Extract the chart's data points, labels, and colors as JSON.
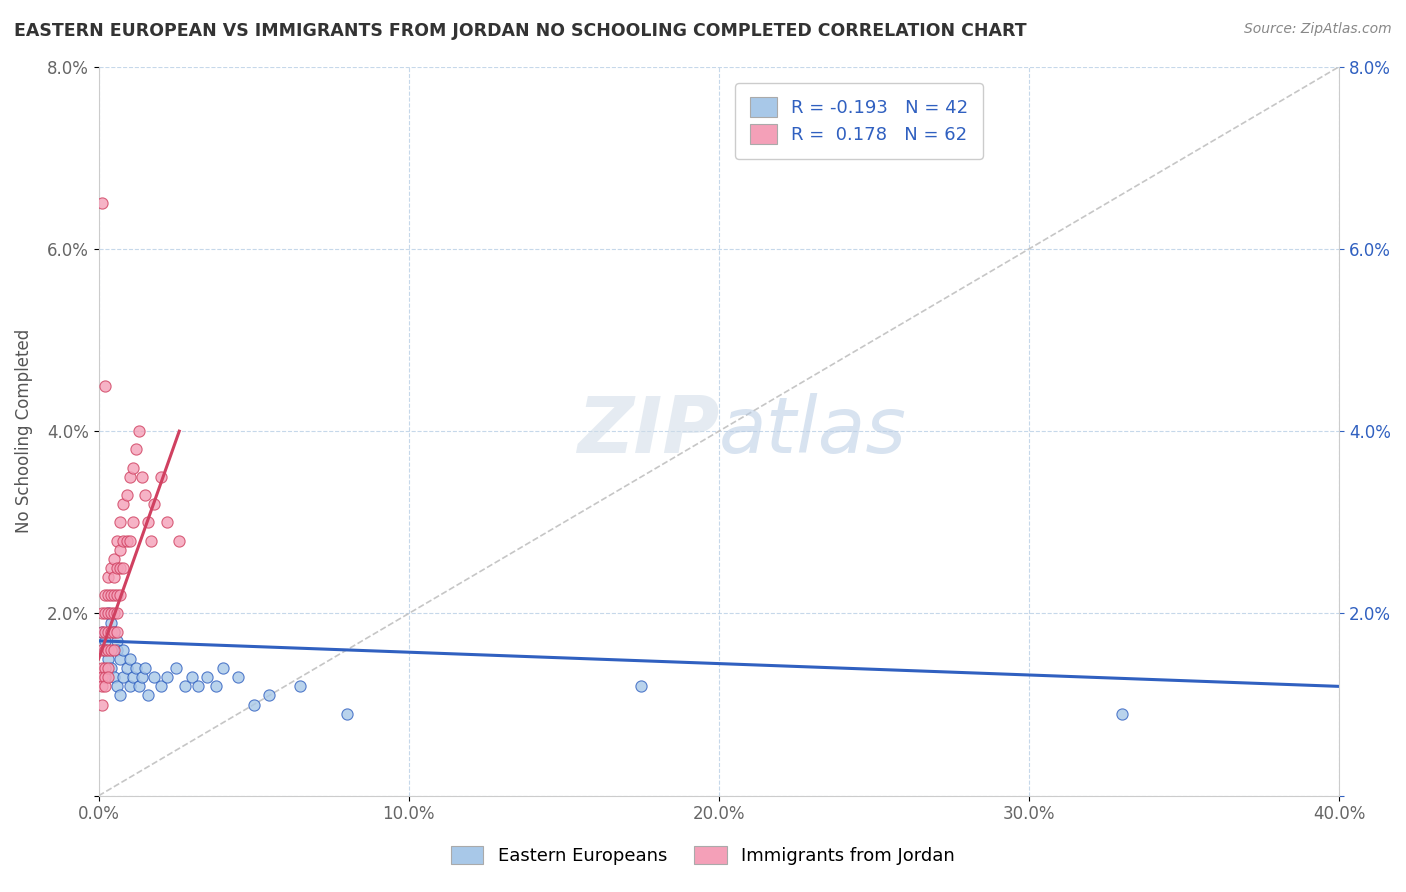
{
  "title": "EASTERN EUROPEAN VS IMMIGRANTS FROM JORDAN NO SCHOOLING COMPLETED CORRELATION CHART",
  "source": "Source: ZipAtlas.com",
  "ylabel": "No Schooling Completed",
  "xlim": [
    0,
    0.4
  ],
  "ylim": [
    0,
    0.08
  ],
  "xticks": [
    0.0,
    0.1,
    0.2,
    0.3,
    0.4
  ],
  "yticks": [
    0.0,
    0.02,
    0.04,
    0.06,
    0.08
  ],
  "xtick_labels": [
    "0.0%",
    "10.0%",
    "20.0%",
    "30.0%",
    "40.0%"
  ],
  "ytick_labels": [
    "",
    "2.0%",
    "4.0%",
    "6.0%",
    "8.0%"
  ],
  "legend_labels": [
    "Eastern Europeans",
    "Immigrants from Jordan"
  ],
  "R_blue": -0.193,
  "N_blue": 42,
  "R_pink": 0.178,
  "N_pink": 62,
  "color_blue": "#a8c8e8",
  "color_pink": "#f4a0b8",
  "line_color_blue": "#3060c0",
  "line_color_pink": "#d04060",
  "background_color": "#ffffff",
  "grid_color": "#c0d4e8",
  "blue_scatter_x": [
    0.001,
    0.002,
    0.002,
    0.003,
    0.003,
    0.004,
    0.004,
    0.005,
    0.005,
    0.006,
    0.006,
    0.006,
    0.007,
    0.007,
    0.008,
    0.008,
    0.009,
    0.01,
    0.01,
    0.011,
    0.012,
    0.013,
    0.014,
    0.015,
    0.016,
    0.018,
    0.02,
    0.022,
    0.025,
    0.028,
    0.03,
    0.032,
    0.035,
    0.038,
    0.04,
    0.045,
    0.05,
    0.055,
    0.065,
    0.08,
    0.175,
    0.33
  ],
  "blue_scatter_y": [
    0.018,
    0.017,
    0.016,
    0.02,
    0.015,
    0.019,
    0.014,
    0.018,
    0.013,
    0.017,
    0.016,
    0.012,
    0.015,
    0.011,
    0.016,
    0.013,
    0.014,
    0.015,
    0.012,
    0.013,
    0.014,
    0.012,
    0.013,
    0.014,
    0.011,
    0.013,
    0.012,
    0.013,
    0.014,
    0.012,
    0.013,
    0.012,
    0.013,
    0.012,
    0.014,
    0.013,
    0.01,
    0.011,
    0.012,
    0.009,
    0.012,
    0.009
  ],
  "pink_scatter_x": [
    0.001,
    0.001,
    0.001,
    0.001,
    0.001,
    0.001,
    0.001,
    0.002,
    0.002,
    0.002,
    0.002,
    0.002,
    0.002,
    0.002,
    0.003,
    0.003,
    0.003,
    0.003,
    0.003,
    0.003,
    0.003,
    0.004,
    0.004,
    0.004,
    0.004,
    0.004,
    0.005,
    0.005,
    0.005,
    0.005,
    0.005,
    0.005,
    0.006,
    0.006,
    0.006,
    0.006,
    0.006,
    0.007,
    0.007,
    0.007,
    0.007,
    0.008,
    0.008,
    0.008,
    0.009,
    0.009,
    0.01,
    0.01,
    0.011,
    0.011,
    0.012,
    0.013,
    0.014,
    0.015,
    0.016,
    0.017,
    0.018,
    0.02,
    0.022,
    0.026,
    0.001,
    0.002
  ],
  "pink_scatter_y": [
    0.02,
    0.018,
    0.016,
    0.014,
    0.013,
    0.012,
    0.01,
    0.022,
    0.02,
    0.018,
    0.016,
    0.014,
    0.013,
    0.012,
    0.024,
    0.022,
    0.02,
    0.018,
    0.016,
    0.014,
    0.013,
    0.025,
    0.022,
    0.02,
    0.018,
    0.016,
    0.026,
    0.024,
    0.022,
    0.02,
    0.018,
    0.016,
    0.028,
    0.025,
    0.022,
    0.02,
    0.018,
    0.03,
    0.027,
    0.025,
    0.022,
    0.032,
    0.028,
    0.025,
    0.033,
    0.028,
    0.035,
    0.028,
    0.036,
    0.03,
    0.038,
    0.04,
    0.035,
    0.033,
    0.03,
    0.028,
    0.032,
    0.035,
    0.03,
    0.028,
    0.065,
    0.045
  ],
  "blue_trend_x0": 0.0,
  "blue_trend_y0": 0.017,
  "blue_trend_x1": 0.4,
  "blue_trend_y1": 0.012,
  "pink_trend_x0": 0.0,
  "pink_trend_y0": 0.015,
  "pink_trend_x1": 0.026,
  "pink_trend_y1": 0.04
}
